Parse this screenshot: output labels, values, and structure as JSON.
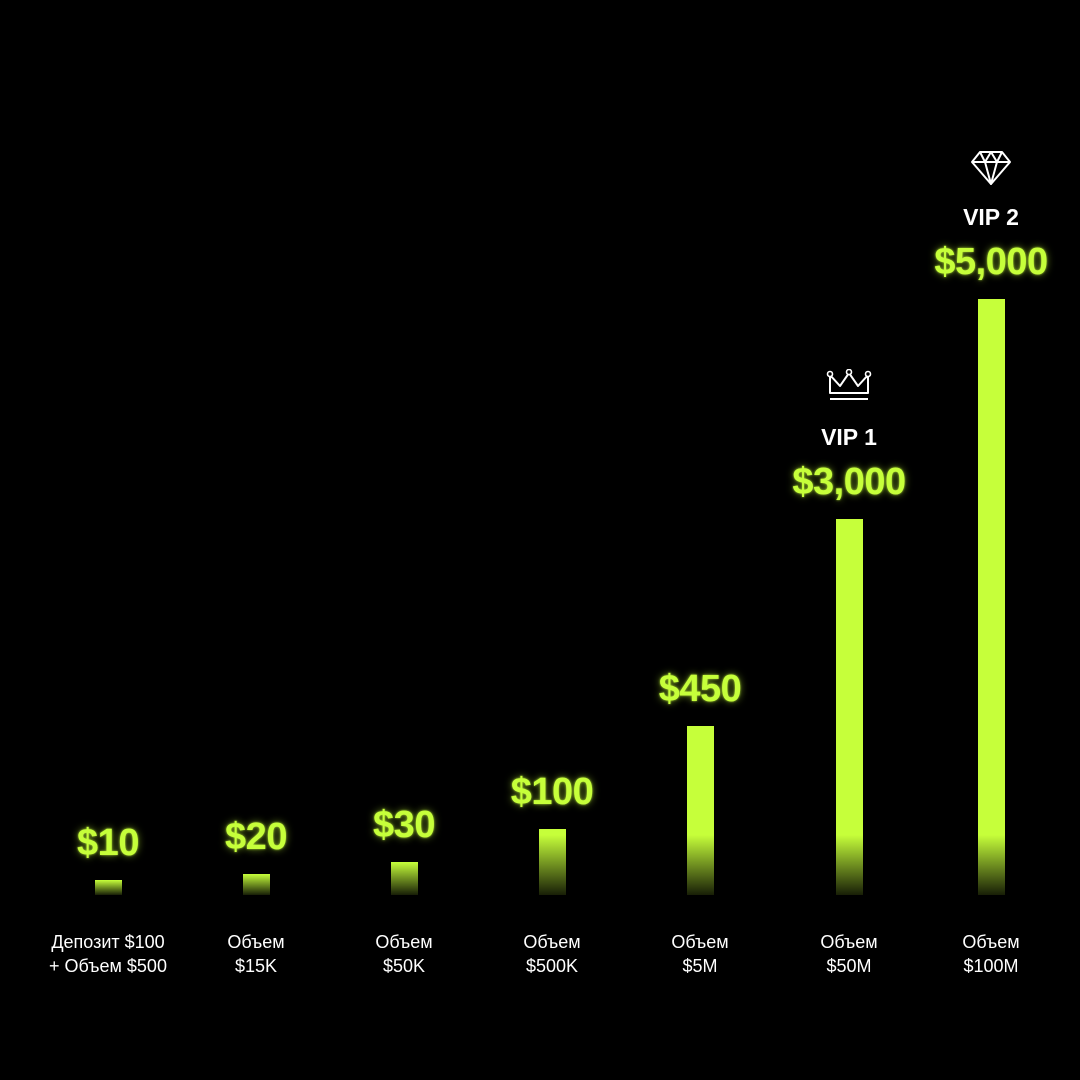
{
  "colors": {
    "background": "#000000",
    "accent": "#c6ff3a",
    "text": "#ffffff"
  },
  "chart_data": {
    "type": "bar",
    "title": "",
    "xlabel": "",
    "ylabel": "",
    "ylim": [
      0,
      5000
    ],
    "grid": false,
    "categories": [
      [
        "Депозит $100",
        "+ Объем $500"
      ],
      [
        "Объем",
        "$15K"
      ],
      [
        "Объем",
        "$50K"
      ],
      [
        "Объем",
        "$500K"
      ],
      [
        "Объем",
        "$5M"
      ],
      [
        "Объем",
        "$50M"
      ],
      [
        "Объем",
        "$100M"
      ]
    ],
    "values": [
      10,
      20,
      30,
      100,
      450,
      3000,
      5000
    ],
    "data_labels": [
      "$10",
      "$20",
      "$30",
      "$100",
      "$450",
      "$3,000",
      "$5,000"
    ],
    "tiers": [
      {
        "index": 5,
        "label": "VIP 1",
        "icon": "crown-icon"
      },
      {
        "index": 6,
        "label": "VIP 2",
        "icon": "diamond-icon"
      }
    ]
  }
}
